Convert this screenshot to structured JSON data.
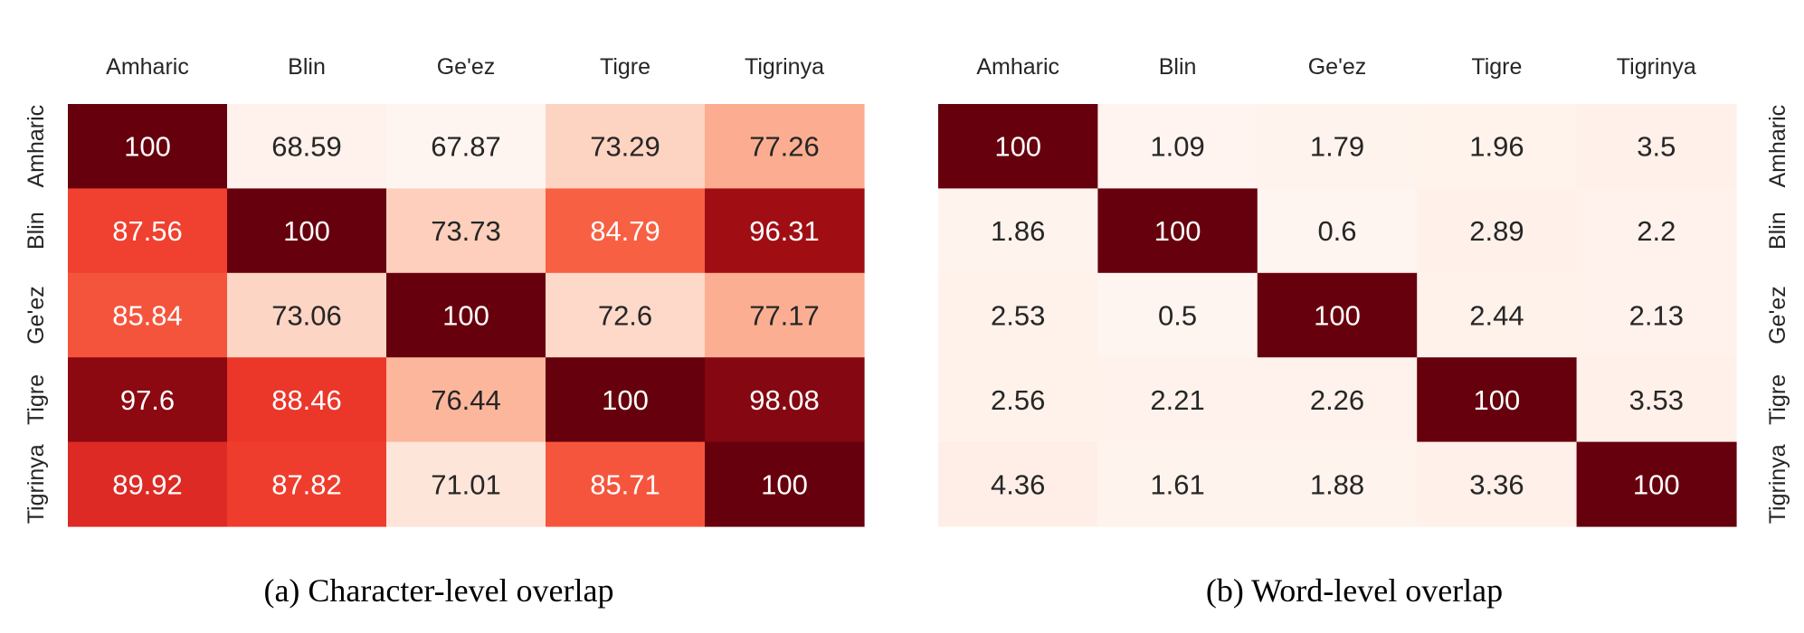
{
  "chart_data": [
    {
      "type": "heatmap",
      "caption": "(a) Character-level overlap",
      "columns": [
        "Amharic",
        "Blin",
        "Ge'ez",
        "Tigre",
        "Tigrinya"
      ],
      "rows": [
        "Amharic",
        "Blin",
        "Ge'ez",
        "Tigre",
        "Tigrinya"
      ],
      "values": [
        [
          100,
          68.59,
          67.87,
          73.29,
          77.26
        ],
        [
          87.56,
          100,
          73.73,
          84.79,
          96.31
        ],
        [
          85.84,
          73.06,
          100,
          72.6,
          77.17
        ],
        [
          97.6,
          88.46,
          76.44,
          100,
          98.08
        ],
        [
          89.92,
          87.82,
          71.01,
          85.71,
          100
        ]
      ],
      "value_range": [
        67.87,
        100
      ],
      "row_labels_side": "left",
      "colormap": "Reds"
    },
    {
      "type": "heatmap",
      "caption": "(b) Word-level overlap",
      "columns": [
        "Amharic",
        "Blin",
        "Ge'ez",
        "Tigre",
        "Tigrinya"
      ],
      "rows": [
        "Amharic",
        "Blin",
        "Ge'ez",
        "Tigre",
        "Tigrinya"
      ],
      "values": [
        [
          100,
          1.09,
          1.79,
          1.96,
          3.5
        ],
        [
          1.86,
          100,
          0.6,
          2.89,
          2.2
        ],
        [
          2.53,
          0.5,
          100,
          2.44,
          2.13
        ],
        [
          2.56,
          2.21,
          2.26,
          100,
          3.53
        ],
        [
          4.36,
          1.61,
          1.88,
          3.36,
          100
        ]
      ],
      "value_range": [
        0.5,
        100
      ],
      "row_labels_side": "right",
      "colormap": "Reds"
    }
  ],
  "colors": {
    "scale": [
      "#fff5f0",
      "#fee0d2",
      "#fcbba1",
      "#fc9272",
      "#fb6a4a",
      "#ef3b2c",
      "#cb181d",
      "#a50f15",
      "#67000d"
    ],
    "text_dark": "#262626",
    "text_light": "#ffffff"
  }
}
